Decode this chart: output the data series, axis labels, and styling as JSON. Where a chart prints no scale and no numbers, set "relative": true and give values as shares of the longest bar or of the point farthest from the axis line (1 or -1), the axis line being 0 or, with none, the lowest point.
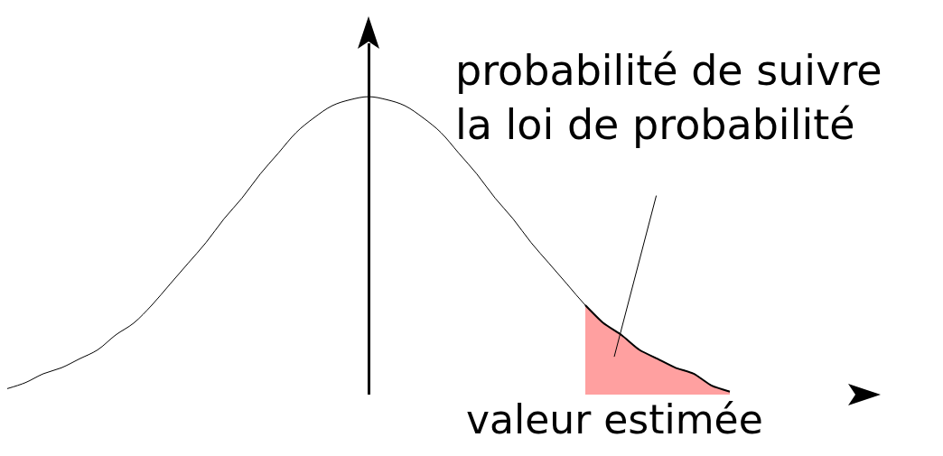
{
  "chart_data": {
    "type": "line",
    "relative": true,
    "xlabel": "valeur estimée",
    "annotations": [
      "probabilité de suivre\nla loi de probabilité"
    ],
    "categories": [
      null,
      null,
      null,
      null,
      null,
      null,
      null,
      null,
      null,
      null,
      null,
      null,
      null,
      null,
      null,
      null,
      null,
      null,
      null,
      null,
      null,
      null,
      null,
      null,
      null,
      null,
      null,
      null,
      null,
      null,
      null,
      null,
      null,
      null,
      null,
      null,
      null,
      null,
      null,
      null,
      null
    ],
    "series": [
      {
        "color": "#000000",
        "values": [
          0.02,
          0.04,
          0.07,
          0.09,
          0.12,
          0.15,
          0.2,
          0.24,
          0.3,
          0.37,
          0.44,
          0.51,
          0.59,
          0.66,
          0.74,
          0.81,
          0.88,
          0.93,
          0.97,
          0.99,
          1,
          0.99,
          0.97,
          0.93,
          0.88,
          0.81,
          0.74,
          0.66,
          0.59,
          0.51,
          0.44,
          0.37,
          0.3,
          0.24,
          0.2,
          0.15,
          0.12,
          0.09,
          0.07,
          0.03,
          0.01
        ]
      },
      {
        "type": "area",
        "color": "#ffa0a0",
        "values": [
          null,
          null,
          null,
          null,
          null,
          null,
          null,
          null,
          null,
          null,
          null,
          null,
          null,
          null,
          null,
          null,
          null,
          null,
          null,
          null,
          null,
          null,
          null,
          null,
          null,
          null,
          null,
          null,
          null,
          null,
          null,
          null,
          0.3,
          0.24,
          0.2,
          0.15,
          0.12,
          0.09,
          0.07,
          0.03,
          0.01
        ]
      }
    ]
  }
}
